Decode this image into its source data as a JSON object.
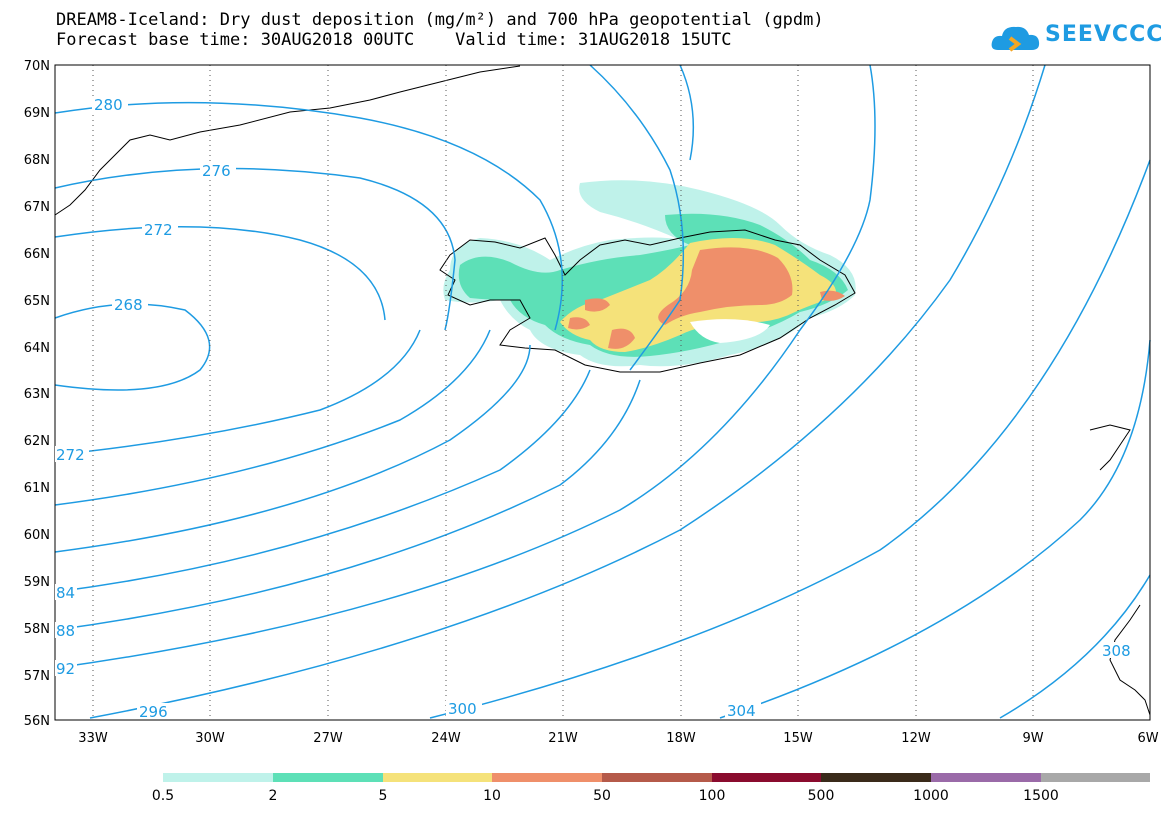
{
  "title": {
    "line1": "DREAM8-Iceland: Dry dust deposition (mg/m²) and 700 hPa geopotential (gpdm)",
    "line2": "Forecast base time: 30AUG2018 00UTC    Valid time: 31AUG2018 15UTC"
  },
  "logo": {
    "text": "SEEVCCC",
    "icon": "cloud-logo-icon"
  },
  "axes": {
    "lat_labels": [
      "70N",
      "69N",
      "68N",
      "67N",
      "66N",
      "65N",
      "64N",
      "63N",
      "62N",
      "61N",
      "60N",
      "59N",
      "58N",
      "57N",
      "56N"
    ],
    "lon_labels": [
      "33W",
      "30W",
      "27W",
      "24W",
      "21W",
      "18W",
      "15W",
      "12W",
      "9W",
      "6W"
    ]
  },
  "contour_labels": {
    "c280": "280",
    "c276": "276",
    "c272a": "272",
    "c268": "268",
    "c272b": "272",
    "c284": "84",
    "c288": "88",
    "c292": "92",
    "c296": "296",
    "c300": "300",
    "c304": "304",
    "c308": "308"
  },
  "legend": {
    "labels": [
      "0.5",
      "2",
      "5",
      "10",
      "50",
      "100",
      "500",
      "1000",
      "1500"
    ],
    "colors": [
      "#bff2ea",
      "#5de0b7",
      "#f5e27a",
      "#ef8f6a",
      "#b55a4a",
      "#8a0b2e",
      "#3a2a1a",
      "#9a6aa8",
      "#a8a8a8"
    ]
  },
  "colors": {
    "contour": "#1e9be2",
    "coast": "#000000"
  }
}
